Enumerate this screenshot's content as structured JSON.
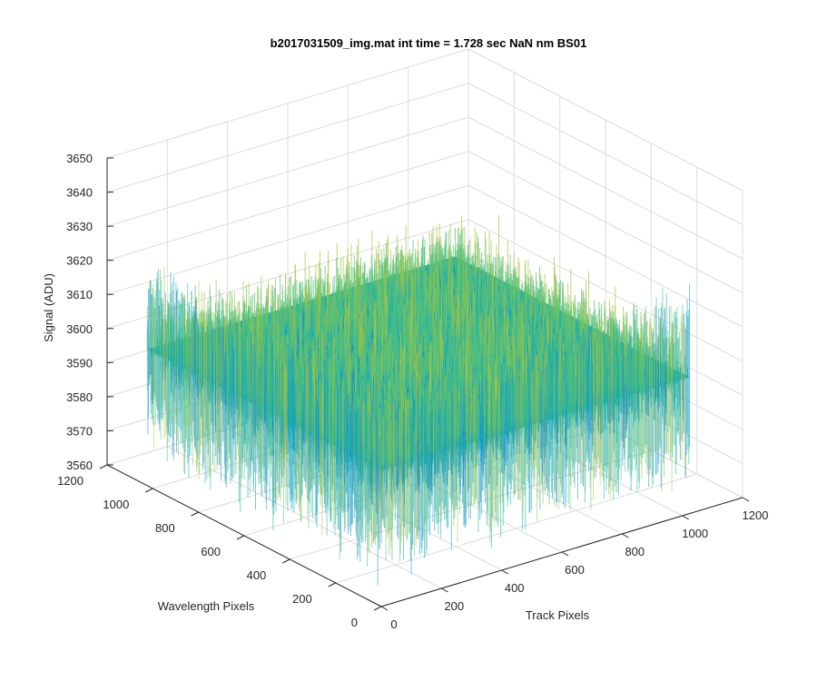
{
  "chart_data": {
    "type": "surface",
    "title": "b2017031509_img.mat int time = 1.728 sec  NaN nm BS01",
    "xlabel": "Track Pixels",
    "ylabel": "Wavelength Pixels",
    "zlabel": "Signal (ADU)",
    "xlim": [
      0,
      1200
    ],
    "ylim": [
      0,
      1200
    ],
    "zlim": [
      3560,
      3650
    ],
    "xticks": [
      "0",
      "200",
      "400",
      "600",
      "800",
      "1000",
      "1200"
    ],
    "yticks": [
      "0",
      "200",
      "400",
      "600",
      "800",
      "1000",
      "1200"
    ],
    "zticks": [
      "3560",
      "3570",
      "3580",
      "3590",
      "3600",
      "3610",
      "3620",
      "3630",
      "3640",
      "3650"
    ],
    "surface": {
      "x_extent": [
        0,
        1024
      ],
      "y_extent": [
        0,
        1024
      ],
      "mean_signal": 3600,
      "signal_range": [
        3575,
        3630
      ],
      "colormap": "parula",
      "colors": [
        "#0f66c5",
        "#1793d1",
        "#15b2a6",
        "#52c17e",
        "#a7c33e",
        "#d6b932"
      ]
    },
    "grid": true,
    "view": "3d-perspective"
  }
}
